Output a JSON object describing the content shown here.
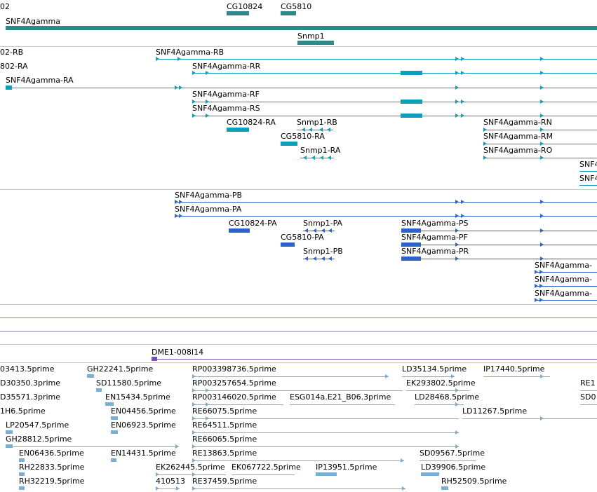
{
  "colors": {
    "gene": "#2e8a8a",
    "rna": "#0c9fbb",
    "protein": "#2b63c9",
    "clone": "#7451b5",
    "est": "#7aaed3",
    "separator": "#c8c8c8"
  },
  "gene_track": {
    "labels": [
      "02",
      "CG10824",
      "CG5810",
      "SNF4Agamma",
      "Snmp1"
    ]
  },
  "transcript_track": {
    "labels": [
      "02-RB",
      "SNF4Agamma-RB",
      "802-RA",
      "SNF4Agamma-RR",
      "SNF4Agamma-RA",
      "SNF4Agamma-RF",
      "SNF4Agamma-RS",
      "CG10824-RA",
      "Snmp1-RB",
      "SNF4Agamma-RN",
      "CG5810-RA",
      "SNF4Agamma-RM",
      "Snmp1-RA",
      "SNF4Agamma-RO",
      "SNF4",
      "SNF4"
    ]
  },
  "protein_track": {
    "labels": [
      "SNF4Agamma-PB",
      "SNF4Agamma-PA",
      "CG10824-PA",
      "Snmp1-PA",
      "SNF4Agamma-PS",
      "CG5810-PA",
      "SNF4Agamma-PF",
      "Snmp1-PB",
      "SNF4Agamma-PR",
      "SNF4Agamma-",
      "SNF4Agamma-",
      "SNF4Agamma-"
    ]
  },
  "clone_track": {
    "labels": [
      "DME1-008I14"
    ]
  },
  "est_track": {
    "labels": [
      "03413.5prime",
      "GH22241.5prime",
      "RP003398736.5prime",
      "LD35134.5prime",
      "IP17440.5prime",
      "D30350.3prime",
      "SD11580.5prime",
      "RP003257654.5prime",
      "EK293802.5prime",
      "RE1",
      "D35571.3prime",
      "EN15434.5prime",
      "RP003146020.5prime",
      "ESG014a.E21_B06.3prime",
      "LD28468.5prime",
      "SD0",
      "1H6.5prime",
      "EN04456.5prime",
      "RE66075.5prime",
      "LD11267.5prime",
      "LP20547.5prime",
      "EN06923.5prime",
      "RE64511.5prime",
      "GH28812.5prime",
      "RE66065.5prime",
      "EN06436.5prime",
      "EN14431.5prime",
      "RE13863.5prime",
      "SD09567.5prime",
      "RH22833.5prime",
      "EK262445.5prime",
      "EK067722.5prime",
      "IP13951.5prime",
      "LD39906.5prime",
      "RH32219.5prime",
      "410513",
      "RE37459.5prime",
      "RH52509.5prime"
    ]
  }
}
